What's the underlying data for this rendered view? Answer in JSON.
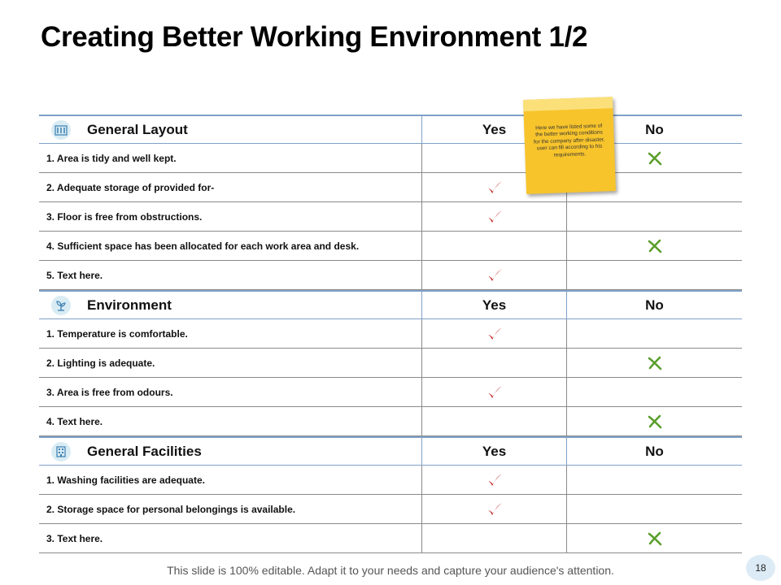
{
  "slide": {
    "title": "Creating Better Working Environment 1/2",
    "footer": "This slide is 100% editable. Adapt it to your needs and capture your audience's attention.",
    "page_number": "18"
  },
  "note": {
    "text": "Here we have listed some of the better working conditions for the company after disaster, user can fill according to his requirements."
  },
  "colors": {
    "check": "#c00000",
    "cross": "#5a9e2c",
    "accent": "#7fa1c8",
    "note": "#f7c42c"
  },
  "sections": [
    {
      "title": "General Layout",
      "icon": "building-icon",
      "yes": "Yes",
      "no": "No",
      "items": [
        {
          "text": "1. Area is tidy and well kept.",
          "answer": "no"
        },
        {
          "text": "2. Adequate storage of provided for-",
          "answer": "yes"
        },
        {
          "text": "3. Floor is free from obstructions.",
          "answer": "yes"
        },
        {
          "text": "4. Sufficient space has been allocated for each work area and desk.",
          "answer": "no"
        },
        {
          "text": "5. Text here.",
          "answer": "yes"
        }
      ]
    },
    {
      "title": "Environment",
      "icon": "plant-icon",
      "yes": "Yes",
      "no": "No",
      "items": [
        {
          "text": "1. Temperature is comfortable.",
          "answer": "yes"
        },
        {
          "text": "2. Lighting is adequate.",
          "answer": "no"
        },
        {
          "text": "3. Area is free from odours.",
          "answer": "yes"
        },
        {
          "text": "4. Text here.",
          "answer": "no"
        }
      ]
    },
    {
      "title": "General Facilities",
      "icon": "office-building-icon",
      "yes": "Yes",
      "no": "No",
      "items": [
        {
          "text": "1. Washing facilities are adequate.",
          "answer": "yes"
        },
        {
          "text": "2. Storage space for personal belongings is available.",
          "answer": "yes"
        },
        {
          "text": "3. Text here.",
          "answer": "no"
        }
      ]
    }
  ]
}
